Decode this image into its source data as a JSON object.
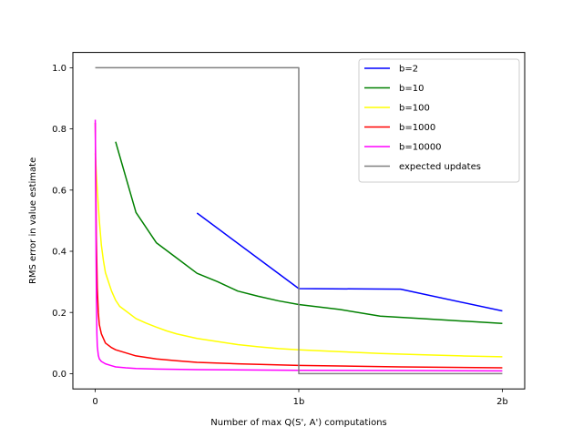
{
  "chart_data": {
    "type": "line",
    "title": "",
    "xlabel": "Number of max Q(S', A') computations",
    "ylabel": "RMS error in value estimate",
    "xlim": [
      -0.11,
      2.11
    ],
    "ylim": [
      -0.05,
      1.05
    ],
    "x_ticks": [
      {
        "value": 0,
        "label": "0"
      },
      {
        "value": 1,
        "label": "1b"
      },
      {
        "value": 2,
        "label": "2b"
      }
    ],
    "y_ticks": [
      {
        "value": 0.0,
        "label": "0.0"
      },
      {
        "value": 0.2,
        "label": "0.2"
      },
      {
        "value": 0.4,
        "label": "0.4"
      },
      {
        "value": 0.6,
        "label": "0.6"
      },
      {
        "value": 0.8,
        "label": "0.8"
      },
      {
        "value": 1.0,
        "label": "1.0"
      }
    ],
    "grid": false,
    "legend_position": "top-right",
    "series": [
      {
        "name": "b=2",
        "color": "#0000ff",
        "x": [
          0.5,
          1.0,
          1.5,
          2.0
        ],
        "y": [
          0.525,
          0.278,
          0.276,
          0.205
        ]
      },
      {
        "name": "b=10",
        "color": "#008000",
        "x": [
          0.1,
          0.2,
          0.3,
          0.4,
          0.5,
          0.6,
          0.7,
          0.8,
          0.9,
          1.0,
          1.2,
          1.4,
          1.6,
          1.8,
          2.0
        ],
        "y": [
          0.758,
          0.527,
          0.428,
          0.378,
          0.328,
          0.301,
          0.27,
          0.253,
          0.238,
          0.226,
          0.21,
          0.188,
          0.18,
          0.172,
          0.164
        ]
      },
      {
        "name": "b=100",
        "color": "#ffff00",
        "x": [
          0.0,
          0.01,
          0.02,
          0.03,
          0.04,
          0.05,
          0.06,
          0.08,
          0.1,
          0.12,
          0.15,
          0.2,
          0.25,
          0.3,
          0.35,
          0.4,
          0.5,
          0.6,
          0.7,
          0.8,
          0.9,
          1.0,
          1.2,
          1.4,
          1.6,
          1.8,
          2.0
        ],
        "y": [
          0.72,
          0.6,
          0.5,
          0.42,
          0.37,
          0.33,
          0.31,
          0.27,
          0.24,
          0.22,
          0.205,
          0.18,
          0.165,
          0.152,
          0.14,
          0.13,
          0.115,
          0.105,
          0.095,
          0.088,
          0.082,
          0.078,
          0.072,
          0.066,
          0.062,
          0.058,
          0.055
        ]
      },
      {
        "name": "b=1000",
        "color": "#ff0000",
        "x": [
          0.0,
          0.005,
          0.01,
          0.015,
          0.02,
          0.03,
          0.05,
          0.08,
          0.1,
          0.15,
          0.2,
          0.3,
          0.4,
          0.5,
          0.7,
          1.0,
          1.5,
          2.0
        ],
        "y": [
          0.82,
          0.45,
          0.28,
          0.2,
          0.16,
          0.13,
          0.1,
          0.085,
          0.078,
          0.068,
          0.058,
          0.048,
          0.042,
          0.037,
          0.032,
          0.027,
          0.022,
          0.019
        ]
      },
      {
        "name": "b=10000",
        "color": "#ff00ff",
        "x": [
          0.0,
          0.002,
          0.004,
          0.006,
          0.008,
          0.01,
          0.015,
          0.02,
          0.03,
          0.05,
          0.08,
          0.1,
          0.15,
          0.2,
          0.3,
          0.5,
          1.0,
          1.5,
          2.0
        ],
        "y": [
          0.83,
          0.6,
          0.38,
          0.22,
          0.13,
          0.09,
          0.06,
          0.048,
          0.04,
          0.032,
          0.026,
          0.022,
          0.019,
          0.017,
          0.015,
          0.013,
          0.011,
          0.01,
          0.009
        ]
      },
      {
        "name": "expected updates",
        "color": "#808080",
        "x": [
          0.0,
          1.0,
          1.0,
          2.0
        ],
        "y": [
          1.0,
          1.0,
          0.0,
          0.0
        ]
      }
    ]
  }
}
